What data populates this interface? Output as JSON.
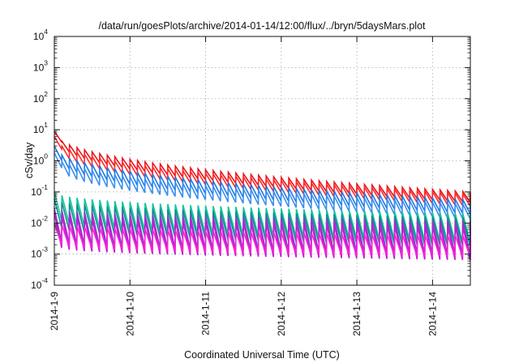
{
  "chart_data": {
    "type": "line",
    "title": "/data/run/goesPlots/archive/2014-01-14/12:00/flux/../bryn/5daysMars.plot",
    "xlabel": "Coordinated Universal Time (UTC)",
    "ylabel": "cSv/day",
    "x_range": [
      "2014-01-09 00:00",
      "2014-01-14 12:00"
    ],
    "x_ticks": [
      "2014-1-9",
      "2014-1-10",
      "2014-1-11",
      "2014-1-12",
      "2014-1-13",
      "2014-1-14"
    ],
    "y_scale": "log",
    "y_range": [
      0.0001,
      10000
    ],
    "y_ticks": [
      {
        "base": "10",
        "exp": "-4"
      },
      {
        "base": "10",
        "exp": "-3"
      },
      {
        "base": "10",
        "exp": "-2"
      },
      {
        "base": "10",
        "exp": "-1"
      },
      {
        "base": "10",
        "exp": "0"
      },
      {
        "base": "10",
        "exp": "1"
      },
      {
        "base": "10",
        "exp": "2"
      },
      {
        "base": "10",
        "exp": "3"
      },
      {
        "base": "10",
        "exp": "4"
      }
    ],
    "grid": true,
    "legend": "none",
    "sawtooth_period_days": 0.1,
    "series": [
      {
        "color": "#e8141c",
        "peak_start": 9.0,
        "peak_end": 0.1,
        "drop_factor": 0.45
      },
      {
        "color": "#ff2a2a",
        "peak_start": 6.0,
        "peak_end": 0.085,
        "drop_factor": 0.4
      },
      {
        "color": "#1f78e6",
        "peak_start": 3.0,
        "peak_end": 0.055,
        "drop_factor": 0.35
      },
      {
        "color": "#3a8ff0",
        "peak_start": 1.8,
        "peak_end": 0.04,
        "drop_factor": 0.33
      },
      {
        "color": "#12c4a0",
        "peak_start": 0.1,
        "peak_end": 0.02,
        "drop_factor": 0.12
      },
      {
        "color": "#0b8f8a",
        "peak_start": 0.06,
        "peak_end": 0.015,
        "drop_factor": 0.12
      },
      {
        "color": "#8a3cc8",
        "peak_start": 0.03,
        "peak_end": 0.012,
        "drop_factor": 0.08
      },
      {
        "color": "#c31ad8",
        "peak_start": 0.02,
        "peak_end": 0.008,
        "drop_factor": 0.08
      },
      {
        "color": "#ff1fd8",
        "peak_start": 0.01,
        "peak_end": 0.004,
        "drop_factor": 0.2
      }
    ]
  }
}
